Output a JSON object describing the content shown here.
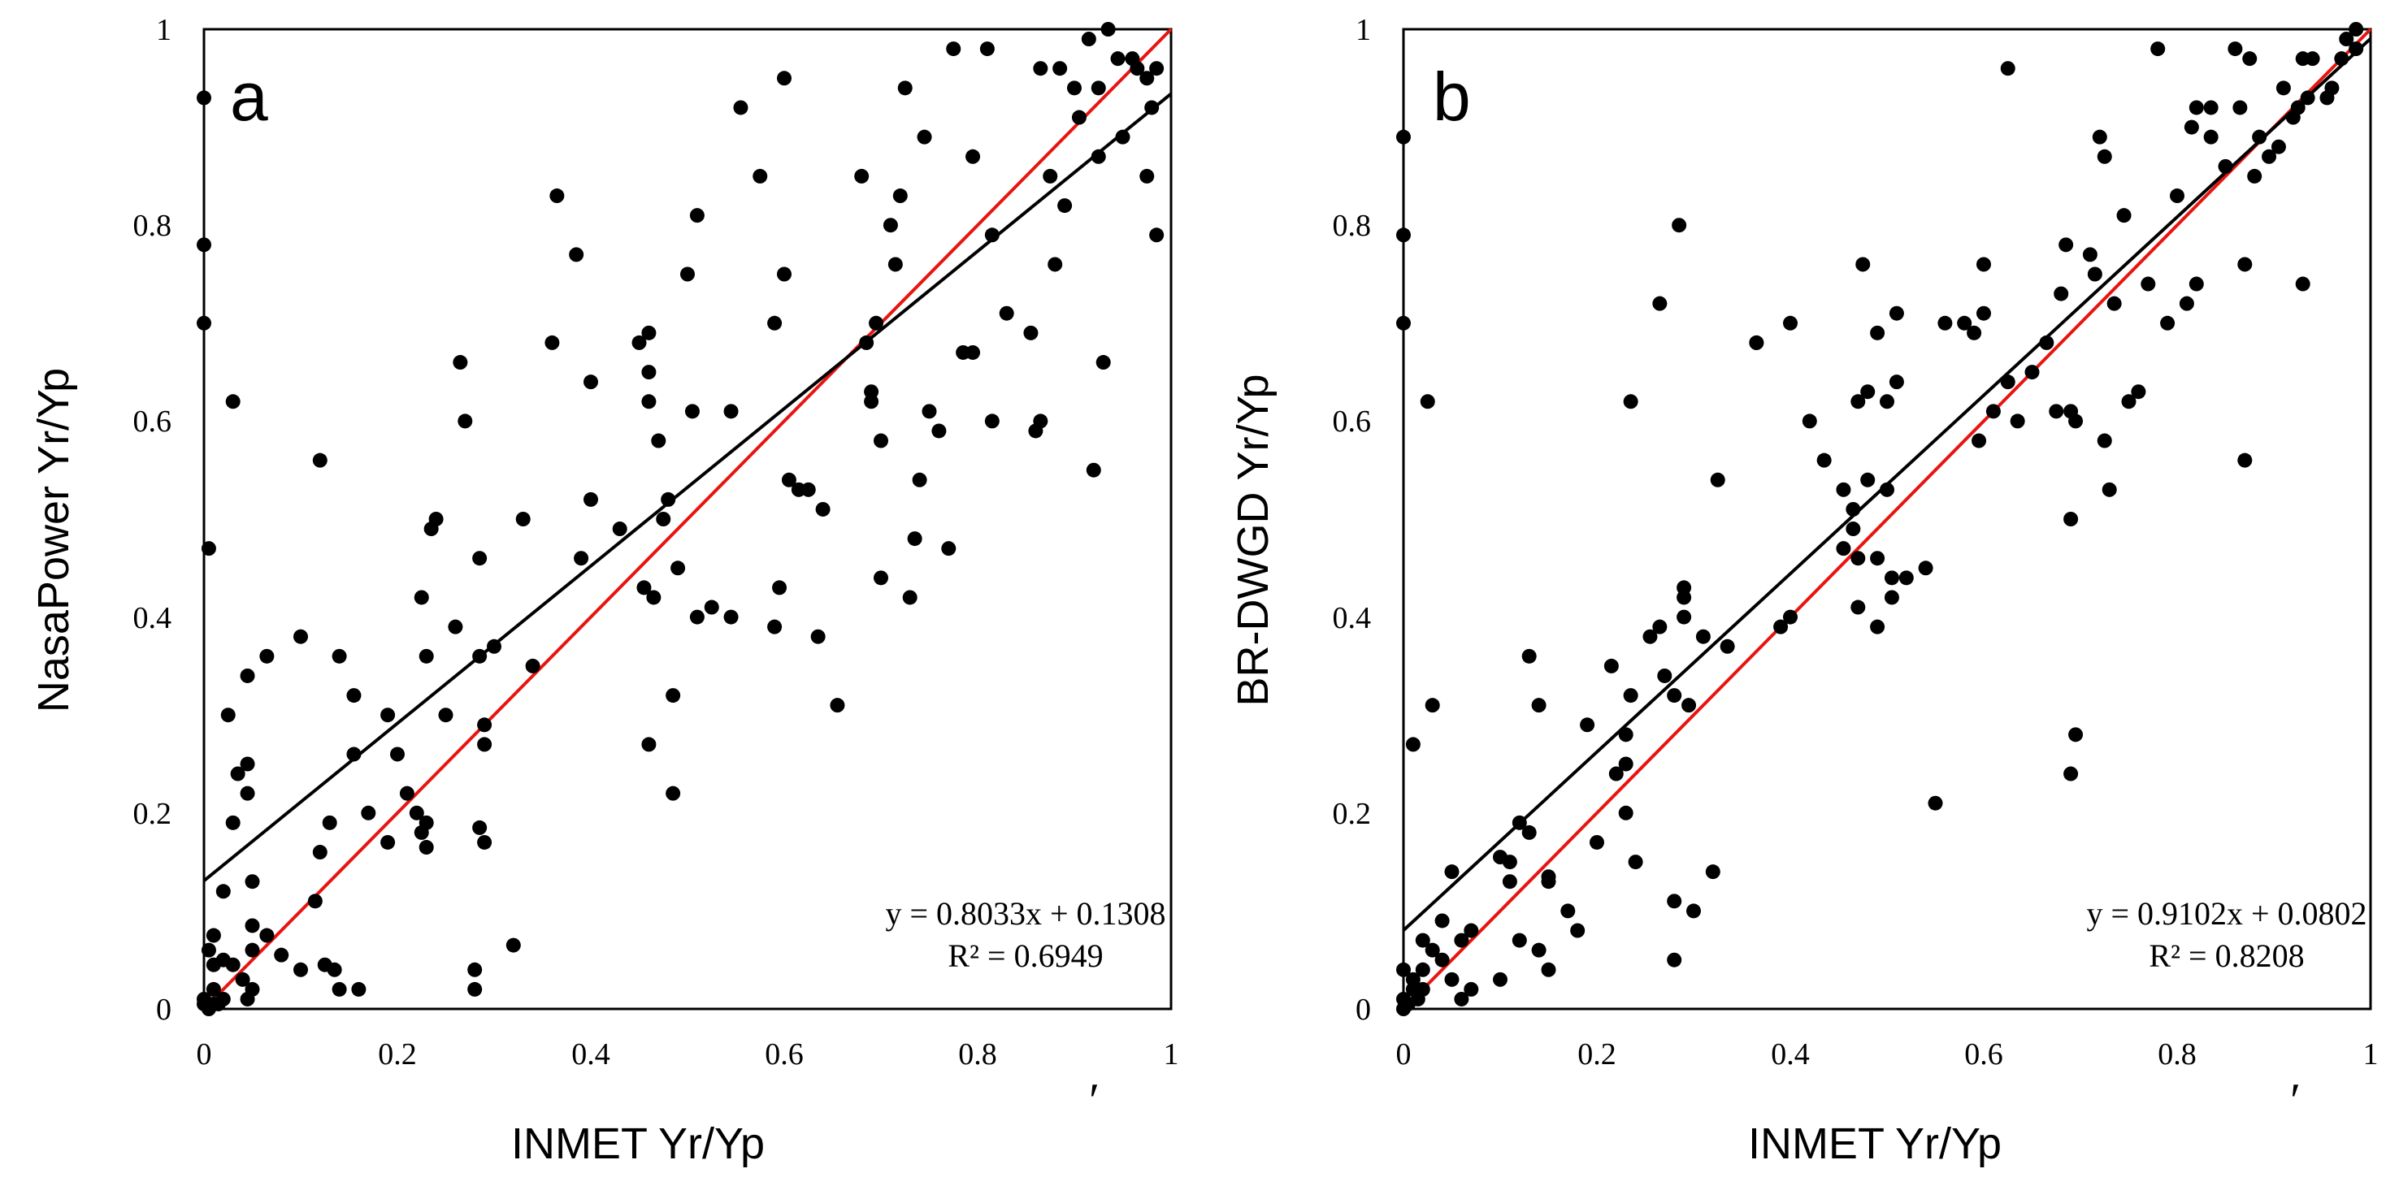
{
  "chart_data": [
    {
      "type": "scatter",
      "panel_label": "a",
      "xlabel": "INMET Yr/Yp",
      "ylabel": "NasaPower Yr/Yp",
      "xlim": [
        0,
        1
      ],
      "ylim": [
        0,
        1
      ],
      "x_ticks": [
        "0",
        "0.2",
        "0.4",
        "0.6",
        "0.8",
        "1"
      ],
      "y_ticks": [
        "0",
        "0.2",
        "0.4",
        "0.6",
        "0.8",
        "1"
      ],
      "fit": {
        "slope": 0.8033,
        "intercept": 0.1308,
        "color": "#000000"
      },
      "identity_line": {
        "slope": 1,
        "intercept": 0,
        "color": "#e8140f"
      },
      "equation_text": "y = 0.8033x + 0.1308",
      "r2_text": "R² = 0.6949",
      "stray_mark": "′",
      "points": [
        [
          0,
          0.93
        ],
        [
          0,
          0.78
        ],
        [
          0,
          0.7
        ],
        [
          0.005,
          0.47
        ],
        [
          0.03,
          0.62
        ],
        [
          0.12,
          0.56
        ],
        [
          0.1,
          0.38
        ],
        [
          0.065,
          0.36
        ],
        [
          0.045,
          0.34
        ],
        [
          0.025,
          0.3
        ],
        [
          0.035,
          0.24
        ],
        [
          0.045,
          0.25
        ],
        [
          0.045,
          0.22
        ],
        [
          0.03,
          0.19
        ],
        [
          0.14,
          0.36
        ],
        [
          0.155,
          0.32
        ],
        [
          0.155,
          0.26
        ],
        [
          0.19,
          0.3
        ],
        [
          0.2,
          0.26
        ],
        [
          0.13,
          0.19
        ],
        [
          0.17,
          0.2
        ],
        [
          0.12,
          0.16
        ],
        [
          0.19,
          0.17
        ],
        [
          0.21,
          0.22
        ],
        [
          0.22,
          0.2
        ],
        [
          0.225,
          0.18
        ],
        [
          0.23,
          0.19
        ],
        [
          0.23,
          0.165
        ],
        [
          0.115,
          0.11
        ],
        [
          0.05,
          0.13
        ],
        [
          0.05,
          0.085
        ],
        [
          0.065,
          0.075
        ],
        [
          0.08,
          0.055
        ],
        [
          0.05,
          0.06
        ],
        [
          0.02,
          0.12
        ],
        [
          0.01,
          0.075
        ],
        [
          0.005,
          0.06
        ],
        [
          0.02,
          0.05
        ],
        [
          0.01,
          0.045
        ],
        [
          0.03,
          0.045
        ],
        [
          0.04,
          0.03
        ],
        [
          0.05,
          0.02
        ],
        [
          0.045,
          0.01
        ],
        [
          0.01,
          0.02
        ],
        [
          0,
          0.01
        ],
        [
          0.01,
          0.005
        ],
        [
          0.02,
          0.01
        ],
        [
          0.015,
          0.005
        ],
        [
          0,
          0.005
        ],
        [
          0.005,
          0
        ],
        [
          0.1,
          0.04
        ],
        [
          0.125,
          0.045
        ],
        [
          0.135,
          0.04
        ],
        [
          0.14,
          0.02
        ],
        [
          0.16,
          0.02
        ],
        [
          0.28,
          0.04
        ],
        [
          0.28,
          0.02
        ],
        [
          0.32,
          0.065
        ],
        [
          0.225,
          0.42
        ],
        [
          0.235,
          0.49
        ],
        [
          0.24,
          0.5
        ],
        [
          0.23,
          0.36
        ],
        [
          0.25,
          0.3
        ],
        [
          0.26,
          0.39
        ],
        [
          0.265,
          0.66
        ],
        [
          0.27,
          0.6
        ],
        [
          0.285,
          0.46
        ],
        [
          0.285,
          0.36
        ],
        [
          0.29,
          0.29
        ],
        [
          0.29,
          0.27
        ],
        [
          0.285,
          0.185
        ],
        [
          0.29,
          0.17
        ],
        [
          0.3,
          0.37
        ],
        [
          0.33,
          0.5
        ],
        [
          0.34,
          0.35
        ],
        [
          0.36,
          0.68
        ],
        [
          0.365,
          0.83
        ],
        [
          0.385,
          0.77
        ],
        [
          0.39,
          0.46
        ],
        [
          0.4,
          0.52
        ],
        [
          0.4,
          0.64
        ],
        [
          0.43,
          0.49
        ],
        [
          0.45,
          0.68
        ],
        [
          0.455,
          0.43
        ],
        [
          0.46,
          0.69
        ],
        [
          0.46,
          0.65
        ],
        [
          0.46,
          0.62
        ],
        [
          0.465,
          0.42
        ],
        [
          0.47,
          0.58
        ],
        [
          0.48,
          0.52
        ],
        [
          0.475,
          0.5
        ],
        [
          0.46,
          0.27
        ],
        [
          0.485,
          0.32
        ],
        [
          0.49,
          0.45
        ],
        [
          0.485,
          0.22
        ],
        [
          0.5,
          0.75
        ],
        [
          0.505,
          0.61
        ],
        [
          0.51,
          0.81
        ],
        [
          0.51,
          0.4
        ],
        [
          0.525,
          0.41
        ],
        [
          0.545,
          0.4
        ],
        [
          0.545,
          0.61
        ],
        [
          0.555,
          0.92
        ],
        [
          0.575,
          0.85
        ],
        [
          0.59,
          0.39
        ],
        [
          0.59,
          0.7
        ],
        [
          0.595,
          0.43
        ],
        [
          0.6,
          0.95
        ],
        [
          0.6,
          0.75
        ],
        [
          0.605,
          0.54
        ],
        [
          0.615,
          0.53
        ],
        [
          0.625,
          0.53
        ],
        [
          0.635,
          0.38
        ],
        [
          0.64,
          0.51
        ],
        [
          0.655,
          0.31
        ],
        [
          0.68,
          0.85
        ],
        [
          0.685,
          0.68
        ],
        [
          0.69,
          0.63
        ],
        [
          0.69,
          0.62
        ],
        [
          0.695,
          0.7
        ],
        [
          0.7,
          0.58
        ],
        [
          0.7,
          0.44
        ],
        [
          0.71,
          0.8
        ],
        [
          0.715,
          0.76
        ],
        [
          0.72,
          0.83
        ],
        [
          0.725,
          0.94
        ],
        [
          0.735,
          0.48
        ],
        [
          0.73,
          0.42
        ],
        [
          0.74,
          0.54
        ],
        [
          0.745,
          0.89
        ],
        [
          0.75,
          0.61
        ],
        [
          0.76,
          0.59
        ],
        [
          0.77,
          0.47
        ],
        [
          0.775,
          0.98
        ],
        [
          0.785,
          0.67
        ],
        [
          0.795,
          0.87
        ],
        [
          0.795,
          0.67
        ],
        [
          0.81,
          0.98
        ],
        [
          0.815,
          0.79
        ],
        [
          0.815,
          0.6
        ],
        [
          0.83,
          0.71
        ],
        [
          0.855,
          0.69
        ],
        [
          0.86,
          0.59
        ],
        [
          0.865,
          0.96
        ],
        [
          0.865,
          0.6
        ],
        [
          0.875,
          0.85
        ],
        [
          0.88,
          0.76
        ],
        [
          0.885,
          0.96
        ],
        [
          0.89,
          0.82
        ],
        [
          0.9,
          0.94
        ],
        [
          0.905,
          0.91
        ],
        [
          0.915,
          0.99
        ],
        [
          0.92,
          0.55
        ],
        [
          0.925,
          0.94
        ],
        [
          0.925,
          0.87
        ],
        [
          0.93,
          0.66
        ],
        [
          0.935,
          1.0
        ],
        [
          0.945,
          0.97
        ],
        [
          0.95,
          0.89
        ],
        [
          0.96,
          0.97
        ],
        [
          0.965,
          0.96
        ],
        [
          0.975,
          0.85
        ],
        [
          0.975,
          0.95
        ],
        [
          0.98,
          0.92
        ],
        [
          0.985,
          0.79
        ],
        [
          0.985,
          0.96
        ]
      ]
    },
    {
      "type": "scatter",
      "panel_label": "b",
      "xlabel": "INMET Yr/Yp",
      "ylabel": "BR-DWGD Yr/Yp",
      "xlim": [
        0,
        1
      ],
      "ylim": [
        0,
        1
      ],
      "x_ticks": [
        "0",
        "0.2",
        "0.4",
        "0.6",
        "0.8",
        "1"
      ],
      "y_ticks": [
        "0",
        "0.2",
        "0.4",
        "0.6",
        "0.8",
        "1"
      ],
      "fit": {
        "slope": 0.9102,
        "intercept": 0.0802,
        "color": "#000000"
      },
      "identity_line": {
        "slope": 1,
        "intercept": 0,
        "color": "#e8140f"
      },
      "equation_text": "y = 0.9102x + 0.0802",
      "r2_text": "R² = 0.8208",
      "stray_mark": "′",
      "points": [
        [
          0,
          0.89
        ],
        [
          0,
          0.79
        ],
        [
          0,
          0.7
        ],
        [
          0.025,
          0.62
        ],
        [
          0.01,
          0.27
        ],
        [
          0.03,
          0.31
        ],
        [
          0.05,
          0.14
        ],
        [
          0.07,
          0.08
        ],
        [
          0.06,
          0.07
        ],
        [
          0.04,
          0.09
        ],
        [
          0.02,
          0.07
        ],
        [
          0.03,
          0.06
        ],
        [
          0.04,
          0.05
        ],
        [
          0.02,
          0.04
        ],
        [
          0.01,
          0.03
        ],
        [
          0,
          0.04
        ],
        [
          0.01,
          0.02
        ],
        [
          0,
          0.01
        ],
        [
          0,
          0
        ],
        [
          0.005,
          0.005
        ],
        [
          0.015,
          0.01
        ],
        [
          0.02,
          0.02
        ],
        [
          0.05,
          0.03
        ],
        [
          0.06,
          0.01
        ],
        [
          0.07,
          0.02
        ],
        [
          0.1,
          0.03
        ],
        [
          0.11,
          0.15
        ],
        [
          0.1,
          0.155
        ],
        [
          0.11,
          0.13
        ],
        [
          0.12,
          0.19
        ],
        [
          0.13,
          0.18
        ],
        [
          0.14,
          0.06
        ],
        [
          0.12,
          0.07
        ],
        [
          0.15,
          0.13
        ],
        [
          0.15,
          0.135
        ],
        [
          0.15,
          0.04
        ],
        [
          0.13,
          0.36
        ],
        [
          0.14,
          0.31
        ],
        [
          0.18,
          0.08
        ],
        [
          0.17,
          0.1
        ],
        [
          0.19,
          0.29
        ],
        [
          0.2,
          0.17
        ],
        [
          0.215,
          0.35
        ],
        [
          0.22,
          0.24
        ],
        [
          0.23,
          0.28
        ],
        [
          0.23,
          0.25
        ],
        [
          0.23,
          0.2
        ],
        [
          0.235,
          0.32
        ],
        [
          0.235,
          0.62
        ],
        [
          0.24,
          0.15
        ],
        [
          0.255,
          0.38
        ],
        [
          0.265,
          0.39
        ],
        [
          0.265,
          0.72
        ],
        [
          0.27,
          0.34
        ],
        [
          0.28,
          0.32
        ],
        [
          0.28,
          0.11
        ],
        [
          0.28,
          0.05
        ],
        [
          0.285,
          0.8
        ],
        [
          0.29,
          0.42
        ],
        [
          0.29,
          0.43
        ],
        [
          0.29,
          0.4
        ],
        [
          0.295,
          0.31
        ],
        [
          0.3,
          0.1
        ],
        [
          0.31,
          0.38
        ],
        [
          0.32,
          0.14
        ],
        [
          0.325,
          0.54
        ],
        [
          0.335,
          0.37
        ],
        [
          0.365,
          0.68
        ],
        [
          0.365,
          0.68
        ],
        [
          0.39,
          0.39
        ],
        [
          0.4,
          0.4
        ],
        [
          0.4,
          0.7
        ],
        [
          0.42,
          0.6
        ],
        [
          0.435,
          0.56
        ],
        [
          0.455,
          0.53
        ],
        [
          0.455,
          0.47
        ],
        [
          0.465,
          0.51
        ],
        [
          0.465,
          0.49
        ],
        [
          0.47,
          0.62
        ],
        [
          0.47,
          0.46
        ],
        [
          0.47,
          0.41
        ],
        [
          0.475,
          0.76
        ],
        [
          0.48,
          0.54
        ],
        [
          0.48,
          0.63
        ],
        [
          0.49,
          0.69
        ],
        [
          0.49,
          0.46
        ],
        [
          0.49,
          0.39
        ],
        [
          0.5,
          0.62
        ],
        [
          0.5,
          0.53
        ],
        [
          0.505,
          0.44
        ],
        [
          0.505,
          0.42
        ],
        [
          0.51,
          0.71
        ],
        [
          0.51,
          0.64
        ],
        [
          0.52,
          0.44
        ],
        [
          0.54,
          0.45
        ],
        [
          0.55,
          0.21
        ],
        [
          0.56,
          0.7
        ],
        [
          0.58,
          0.7
        ],
        [
          0.59,
          0.69
        ],
        [
          0.595,
          0.58
        ],
        [
          0.6,
          0.76
        ],
        [
          0.6,
          0.71
        ],
        [
          0.61,
          0.61
        ],
        [
          0.625,
          0.96
        ],
        [
          0.625,
          0.64
        ],
        [
          0.635,
          0.6
        ],
        [
          0.65,
          0.65
        ],
        [
          0.665,
          0.68
        ],
        [
          0.675,
          0.61
        ],
        [
          0.68,
          0.73
        ],
        [
          0.685,
          0.78
        ],
        [
          0.69,
          0.5
        ],
        [
          0.69,
          0.61
        ],
        [
          0.69,
          0.24
        ],
        [
          0.695,
          0.6
        ],
        [
          0.695,
          0.28
        ],
        [
          0.71,
          0.77
        ],
        [
          0.715,
          0.75
        ],
        [
          0.72,
          0.89
        ],
        [
          0.725,
          0.58
        ],
        [
          0.725,
          0.87
        ],
        [
          0.73,
          0.53
        ],
        [
          0.735,
          0.72
        ],
        [
          0.745,
          0.81
        ],
        [
          0.75,
          0.62
        ],
        [
          0.76,
          0.63
        ],
        [
          0.77,
          0.74
        ],
        [
          0.78,
          0.98
        ],
        [
          0.79,
          0.7
        ],
        [
          0.8,
          0.83
        ],
        [
          0.81,
          0.72
        ],
        [
          0.815,
          0.9
        ],
        [
          0.82,
          0.92
        ],
        [
          0.82,
          0.74
        ],
        [
          0.835,
          0.92
        ],
        [
          0.835,
          0.89
        ],
        [
          0.85,
          0.86
        ],
        [
          0.86,
          0.98
        ],
        [
          0.865,
          0.92
        ],
        [
          0.87,
          0.76
        ],
        [
          0.87,
          0.56
        ],
        [
          0.875,
          0.97
        ],
        [
          0.88,
          0.85
        ],
        [
          0.885,
          0.89
        ],
        [
          0.895,
          0.87
        ],
        [
          0.905,
          0.88
        ],
        [
          0.91,
          0.94
        ],
        [
          0.92,
          0.91
        ],
        [
          0.925,
          0.92
        ],
        [
          0.93,
          0.97
        ],
        [
          0.93,
          0.74
        ],
        [
          0.935,
          0.93
        ],
        [
          0.94,
          0.97
        ],
        [
          0.955,
          0.93
        ],
        [
          0.96,
          0.94
        ],
        [
          0.97,
          0.97
        ],
        [
          0.975,
          0.99
        ],
        [
          0.985,
          0.98
        ],
        [
          0.985,
          1.0
        ]
      ]
    }
  ]
}
